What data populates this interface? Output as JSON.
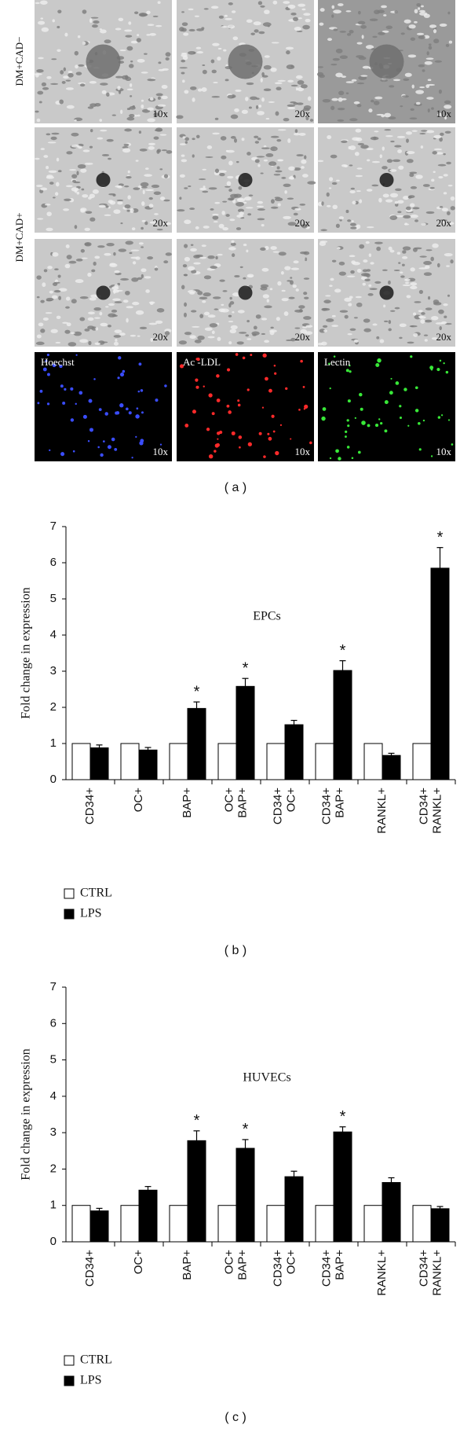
{
  "panel_a": {
    "row_labels": [
      "DM+CAD−",
      "DM+CAD+"
    ],
    "images": [
      {
        "magnification": "10x"
      },
      {
        "magnification": "20x"
      },
      {
        "magnification": "10x"
      },
      {
        "magnification": "20x"
      },
      {
        "magnification": "20x"
      },
      {
        "magnification": "20x"
      },
      {
        "magnification": "20x"
      },
      {
        "magnification": "20x"
      },
      {
        "magnification": "20x"
      },
      {
        "label": "Hoechst",
        "magnification": "10x"
      },
      {
        "label": "Ac -LDL",
        "magnification": "10x"
      },
      {
        "label": "Lectin",
        "magnification": "10x"
      }
    ],
    "caption": "( a )"
  },
  "chart_data": [
    {
      "type": "bar",
      "annotation": "EPCs",
      "y_label": "Fold change in expression",
      "categories": [
        [
          "CD34+"
        ],
        [
          "OC+"
        ],
        [
          "BAP+"
        ],
        [
          "OC+",
          "BAP+"
        ],
        [
          "CD34+",
          "OC+"
        ],
        [
          "CD34+",
          "BAP+"
        ],
        [
          "RANKL+"
        ],
        [
          "CD34+",
          "RANKL+"
        ]
      ],
      "series": [
        {
          "name": "CTRL",
          "color": "#ffffff",
          "values": [
            1,
            1,
            1,
            1,
            1,
            1,
            1,
            1
          ]
        },
        {
          "name": "LPS",
          "color": "#000000",
          "values": [
            0.88,
            0.82,
            1.97,
            2.58,
            1.52,
            3.02,
            0.67,
            5.85
          ],
          "errors": [
            0.08,
            0.07,
            0.18,
            0.22,
            0.12,
            0.27,
            0.06,
            0.57
          ]
        }
      ],
      "significance_labels": [
        null,
        null,
        "*",
        "*",
        null,
        "*",
        null,
        "*"
      ],
      "ylim": [
        0,
        7
      ],
      "yticks": [
        0,
        1,
        2,
        3,
        4,
        5,
        6,
        7
      ],
      "legend": "bottom-left",
      "caption": "( b )"
    },
    {
      "type": "bar",
      "annotation": "HUVECs",
      "y_label": "Fold change in expression",
      "categories": [
        [
          "CD34+"
        ],
        [
          "OC+"
        ],
        [
          "BAP+"
        ],
        [
          "OC+",
          "BAP+"
        ],
        [
          "CD34+",
          "OC+"
        ],
        [
          "CD34+",
          "BAP+"
        ],
        [
          "RANKL+"
        ],
        [
          "CD34+",
          "RANKL+"
        ]
      ],
      "series": [
        {
          "name": "CTRL",
          "color": "#ffffff",
          "values": [
            1,
            1,
            1,
            1,
            1,
            1,
            1,
            1
          ]
        },
        {
          "name": "LPS",
          "color": "#000000",
          "values": [
            0.85,
            1.42,
            2.78,
            2.57,
            1.79,
            3.02,
            1.63,
            0.91
          ],
          "errors": [
            0.07,
            0.1,
            0.27,
            0.24,
            0.15,
            0.14,
            0.13,
            0.06
          ]
        }
      ],
      "significance_labels": [
        null,
        null,
        "*",
        "*",
        null,
        "*",
        null,
        null
      ],
      "ylim": [
        0,
        7
      ],
      "yticks": [
        0,
        1,
        2,
        3,
        4,
        5,
        6,
        7
      ],
      "legend": "bottom-left",
      "caption": "( c )"
    }
  ]
}
